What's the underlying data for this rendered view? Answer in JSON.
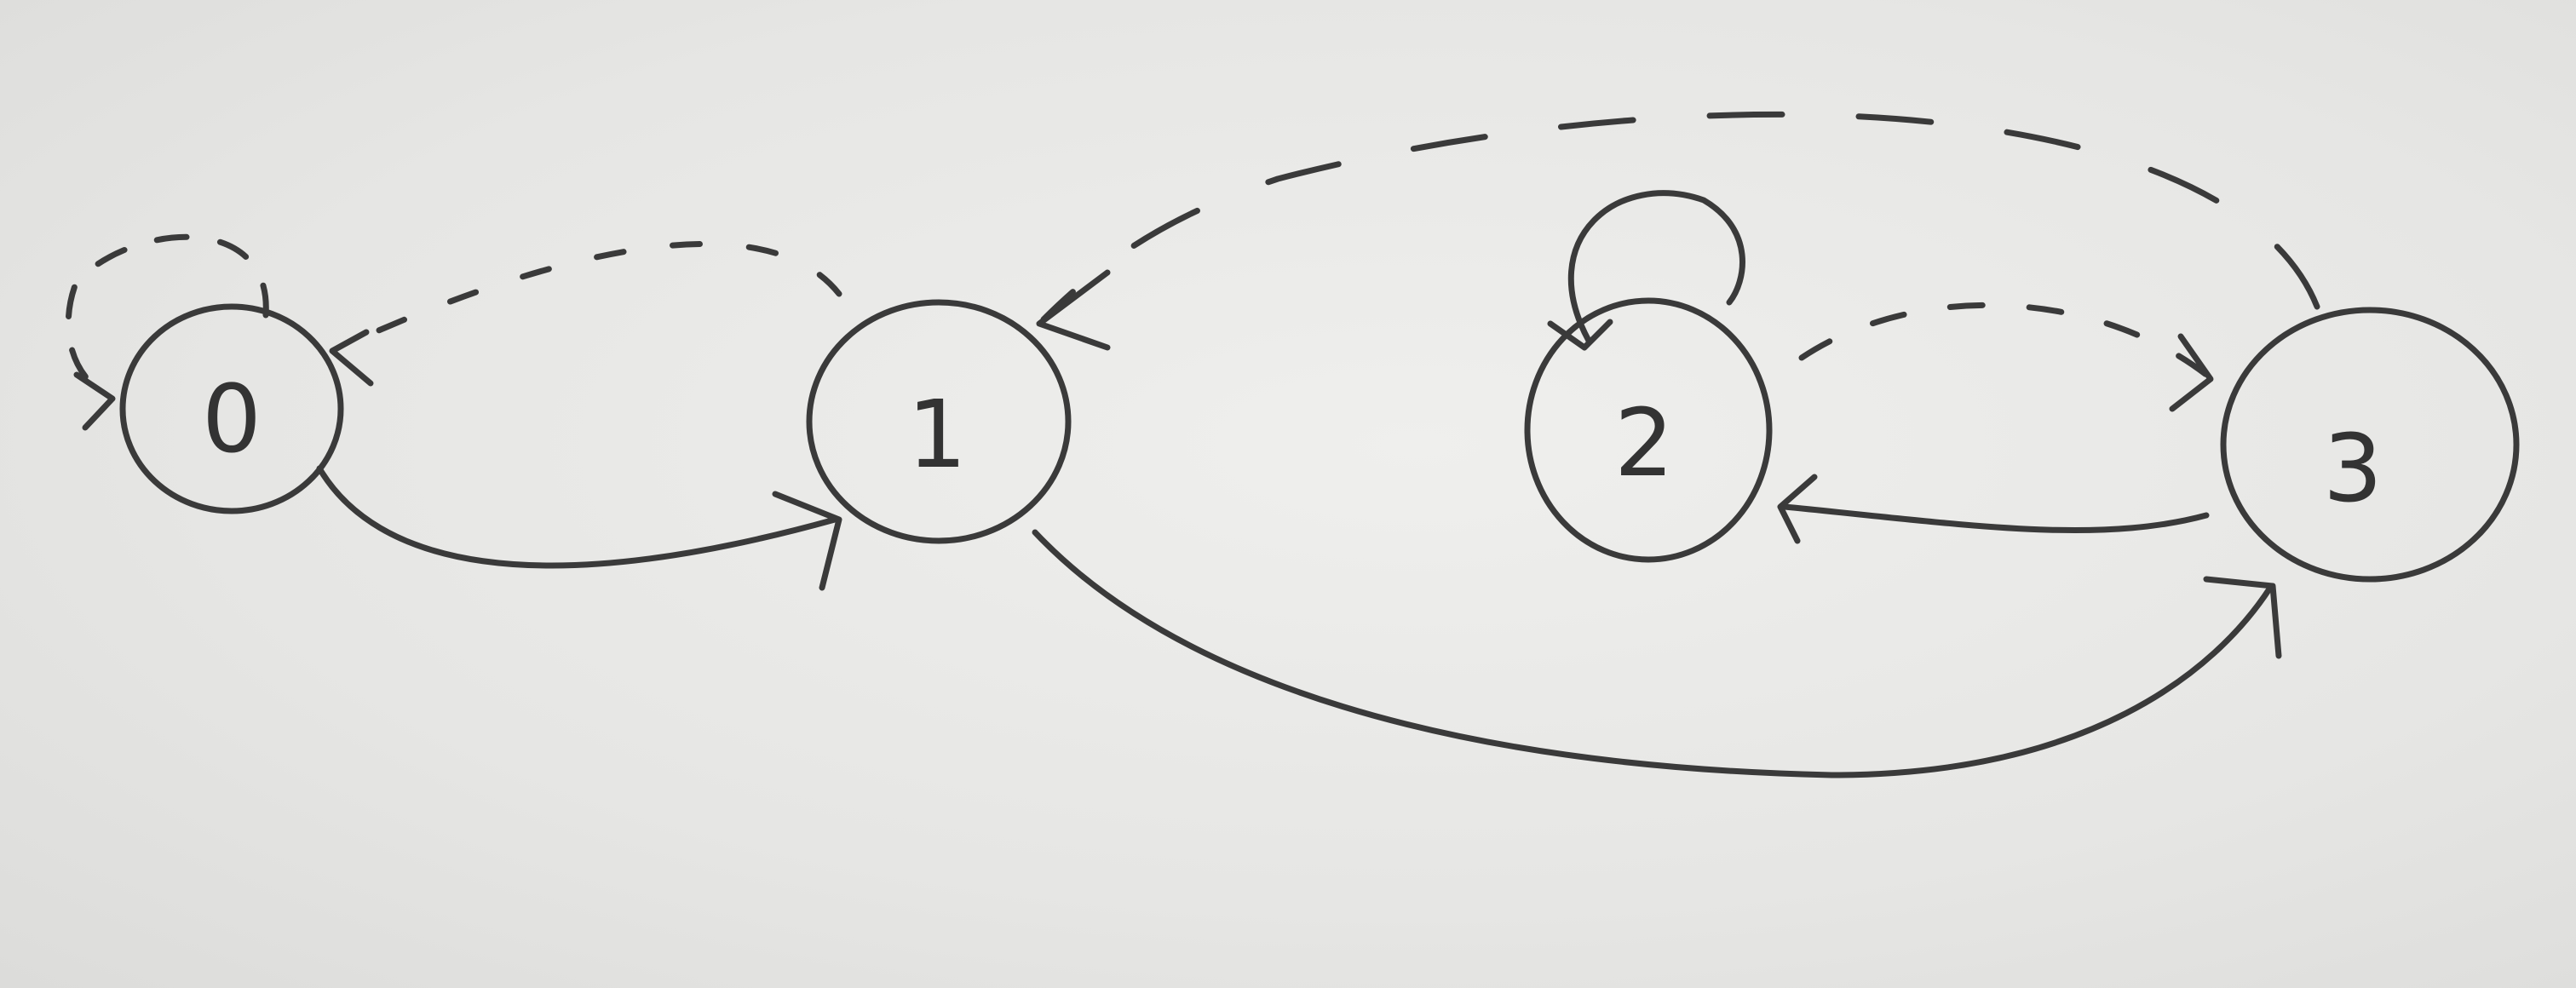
{
  "diagram": {
    "kind": "state-transition-graph",
    "style": "hand-drawn ink on paper",
    "edge_styles": [
      "solid",
      "dashed"
    ],
    "nodes": [
      {
        "id": "0",
        "label": "0"
      },
      {
        "id": "1",
        "label": "1"
      },
      {
        "id": "2",
        "label": "2"
      },
      {
        "id": "3",
        "label": "3"
      }
    ],
    "edges": [
      {
        "from": "0",
        "to": "0",
        "style": "dashed",
        "self_loop": true
      },
      {
        "from": "1",
        "to": "0",
        "style": "dashed"
      },
      {
        "from": "0",
        "to": "1",
        "style": "solid"
      },
      {
        "from": "3",
        "to": "1",
        "style": "dashed"
      },
      {
        "from": "2",
        "to": "2",
        "style": "solid",
        "self_loop": true
      },
      {
        "from": "2",
        "to": "3",
        "style": "dashed"
      },
      {
        "from": "3",
        "to": "2",
        "style": "solid"
      },
      {
        "from": "1",
        "to": "3",
        "style": "solid"
      }
    ]
  },
  "colors": {
    "ink": "#3a3a3a",
    "paper": "#e6e6e4"
  }
}
